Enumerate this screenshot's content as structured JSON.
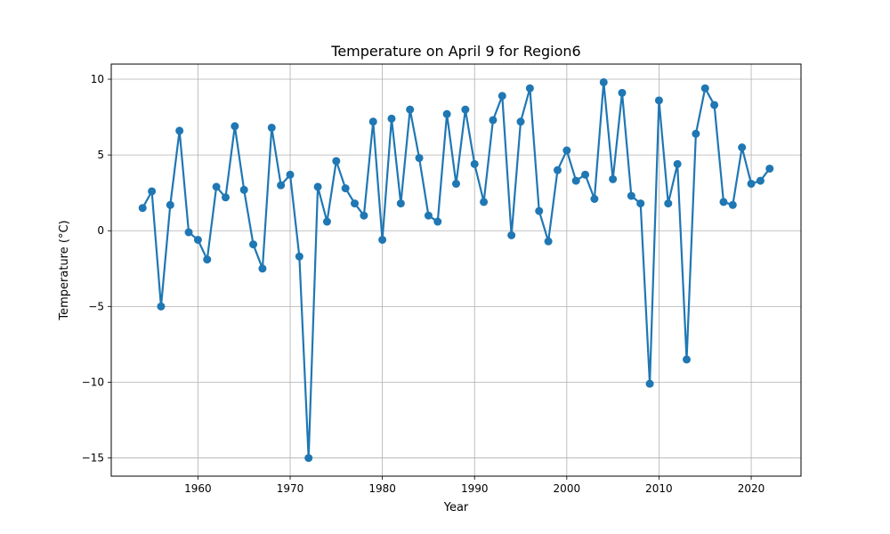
{
  "chart_data": {
    "type": "line",
    "title": "Temperature on April 9 for Region6",
    "xlabel": "Year",
    "ylabel": "Temperature (°C)",
    "xlim": [
      1950.6,
      2025.4
    ],
    "ylim": [
      -16.2,
      11.0
    ],
    "xticks": [
      1960,
      1970,
      1980,
      1990,
      2000,
      2010,
      2020
    ],
    "yticks": [
      -15,
      -10,
      -5,
      0,
      5,
      10
    ],
    "grid": true,
    "marker": "circle",
    "color": "#1f77b4",
    "series": [
      {
        "x": [
          1954,
          1955,
          1956,
          1957,
          1958,
          1959,
          1960,
          1961,
          1962,
          1963,
          1964,
          1965,
          1966,
          1967,
          1968,
          1969,
          1970,
          1971,
          1972,
          1973,
          1974,
          1975,
          1976,
          1977,
          1978,
          1979,
          1980,
          1981,
          1982,
          1983,
          1984,
          1985,
          1986,
          1987,
          1988,
          1989,
          1990,
          1991,
          1992,
          1993,
          1994,
          1995,
          1996,
          1997,
          1998,
          1999,
          2000,
          2001,
          2002,
          2003,
          2004,
          2005,
          2006,
          2007,
          2008,
          2009,
          2010,
          2011,
          2012,
          2013,
          2014,
          2015,
          2016,
          2017,
          2018,
          2019,
          2020,
          2021,
          2022
        ],
        "values": [
          1.5,
          2.6,
          -5.0,
          1.7,
          6.6,
          -0.1,
          -0.6,
          -1.9,
          2.9,
          2.2,
          6.9,
          2.7,
          -0.9,
          -2.5,
          6.8,
          3.0,
          3.7,
          -1.7,
          -15.0,
          2.9,
          0.6,
          4.6,
          2.8,
          1.8,
          1.0,
          7.2,
          -0.6,
          7.4,
          1.8,
          8.0,
          4.8,
          1.0,
          0.6,
          7.7,
          3.1,
          8.0,
          4.4,
          1.9,
          7.3,
          8.9,
          -0.3,
          7.2,
          9.4,
          1.3,
          -0.7,
          4.0,
          5.3,
          3.3,
          3.7,
          2.1,
          9.8,
          3.4,
          9.1,
          2.3,
          1.8,
          -10.1,
          8.6,
          1.8,
          4.4,
          -8.5,
          6.4,
          9.4,
          8.3,
          1.9,
          1.7,
          5.5,
          3.1,
          3.3,
          4.1
        ]
      }
    ]
  }
}
